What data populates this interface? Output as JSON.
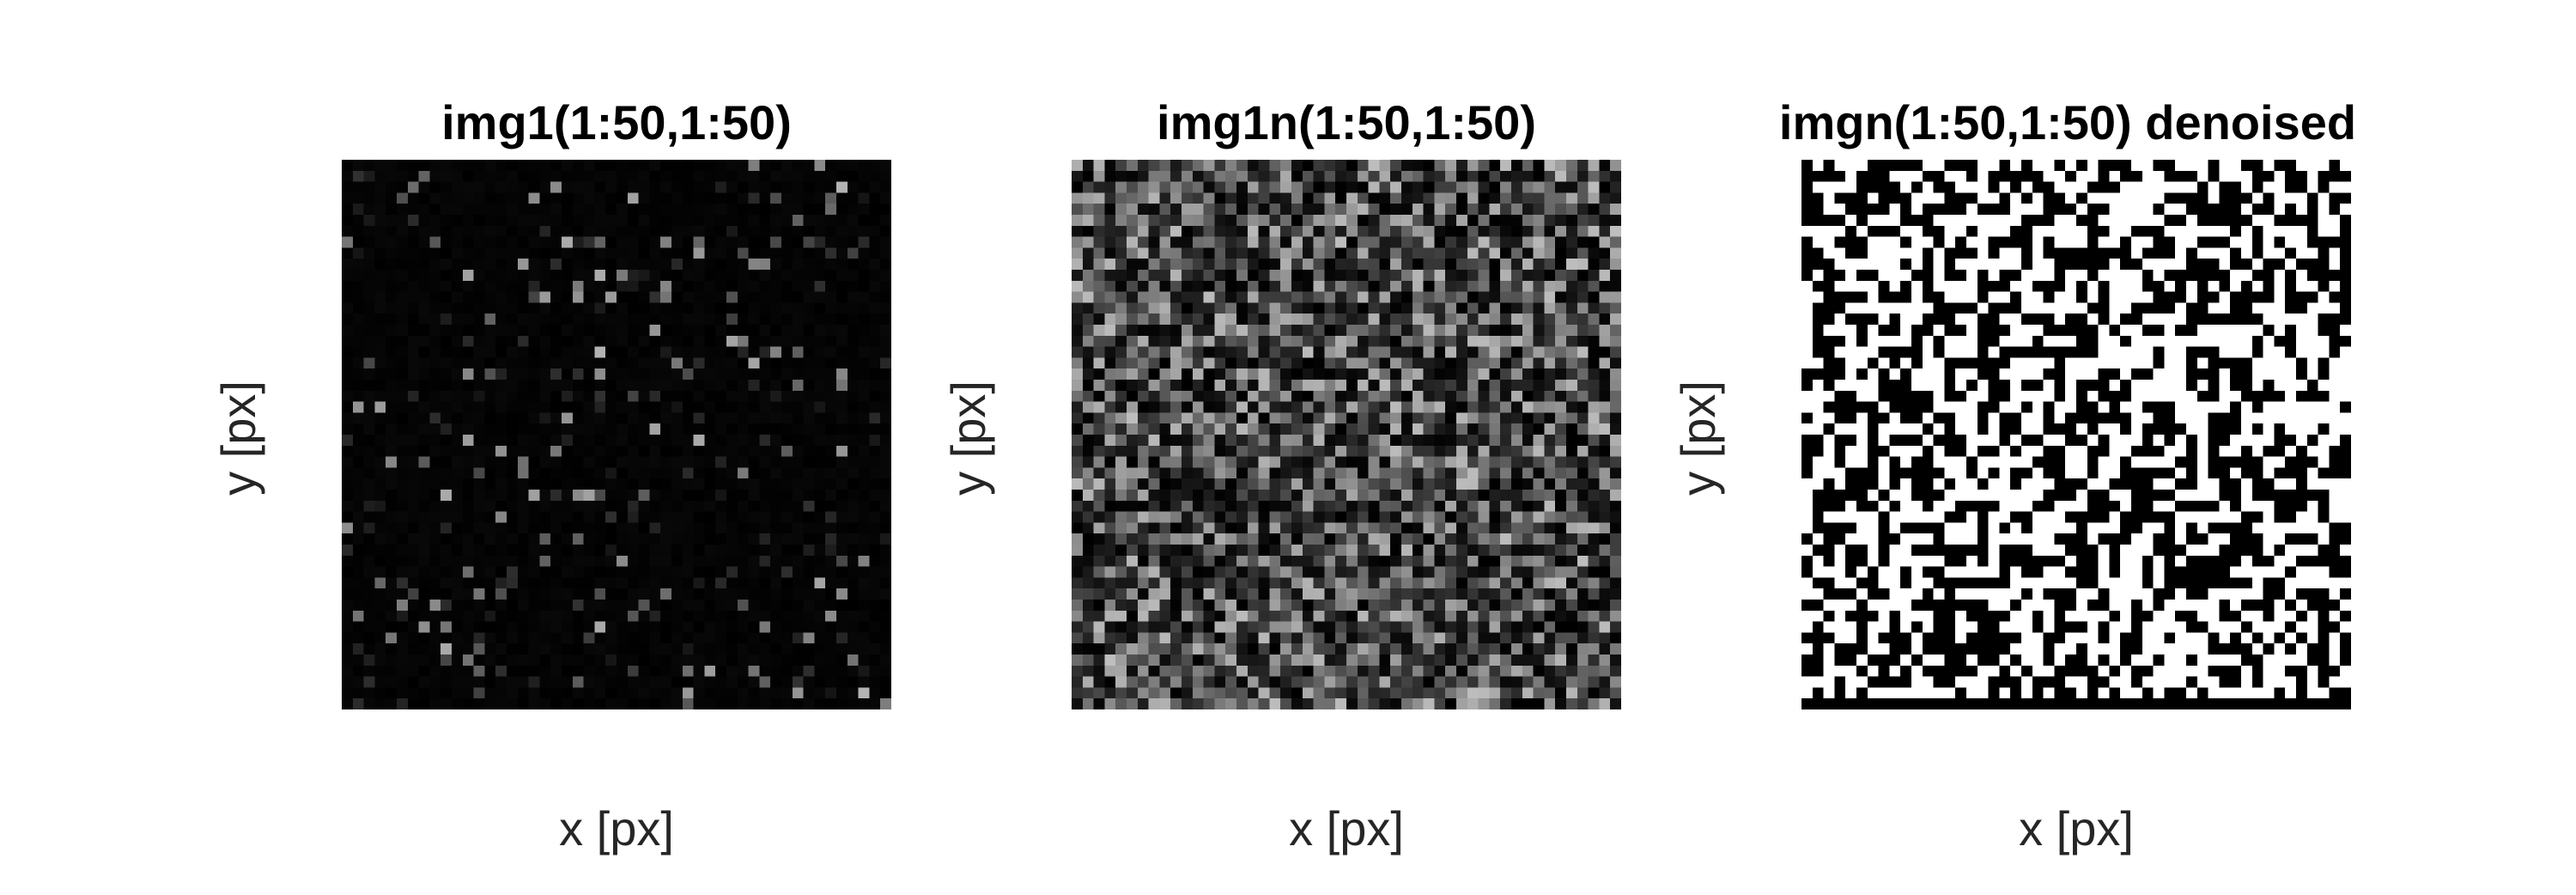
{
  "chart_data": [
    {
      "type": "heatmap",
      "title": "img1(1:50,1:50)",
      "xlabel": "x [px]",
      "ylabel": "y [px]",
      "grid_size": [
        50,
        50
      ],
      "colormap": "gray",
      "content": "sparse dim bright speckles on black background",
      "xticks": false,
      "yticks": false
    },
    {
      "type": "heatmap",
      "title": "img1n(1:50,1:50)",
      "xlabel": "x [px]",
      "ylabel": "y [px]",
      "grid_size": [
        50,
        50
      ],
      "colormap": "gray",
      "content": "dense low-intensity noise across entire image",
      "xticks": false,
      "yticks": false
    },
    {
      "type": "heatmap",
      "title": "imgn(1:50,1:50) denoised",
      "xlabel": "x [px]",
      "ylabel": "y [px]",
      "grid_size": [
        50,
        50
      ],
      "colormap": "binary (black/white)",
      "content": "binary black and white pixel pattern, roughly half white",
      "xticks": false,
      "yticks": false
    }
  ]
}
